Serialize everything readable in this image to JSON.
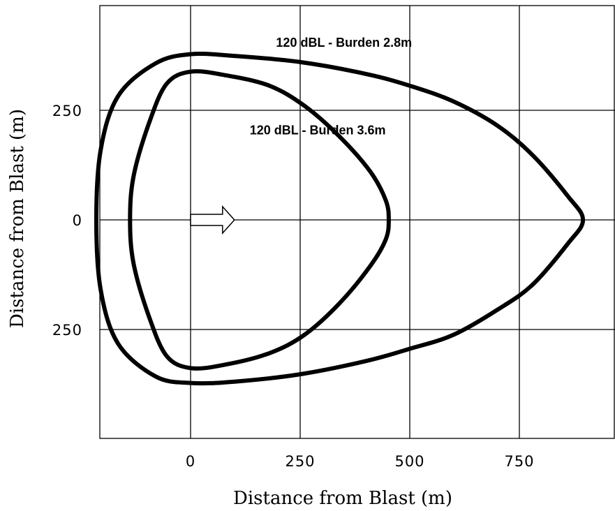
{
  "chart_data": {
    "type": "line",
    "xlabel": "Distance from Blast (m)",
    "ylabel": "Distance from Blast (m)",
    "xlim": [
      -210,
      980
    ],
    "ylim": [
      -500,
      500
    ],
    "x_ticks": [
      {
        "value": 0,
        "label": "0"
      },
      {
        "value": 250,
        "label": "250"
      },
      {
        "value": 500,
        "label": "500"
      },
      {
        "value": 750,
        "label": "750"
      }
    ],
    "y_ticks": [
      {
        "value": 250,
        "label": "250"
      },
      {
        "value": 0,
        "label": "0"
      },
      {
        "value": -250,
        "label": "250"
      }
    ],
    "grid": true,
    "series": [
      {
        "name": "120 dBL - Burden 2.8m",
        "closed": true,
        "points": [
          [
            0,
            378
          ],
          [
            100,
            374
          ],
          [
            250,
            360
          ],
          [
            400,
            333
          ],
          [
            500,
            306
          ],
          [
            600,
            270
          ],
          [
            700,
            215
          ],
          [
            780,
            148
          ],
          [
            860,
            55
          ],
          [
            895,
            0
          ],
          [
            860,
            -55
          ],
          [
            780,
            -148
          ],
          [
            700,
            -205
          ],
          [
            600,
            -262
          ],
          [
            500,
            -294
          ],
          [
            400,
            -322
          ],
          [
            250,
            -352
          ],
          [
            100,
            -369
          ],
          [
            0,
            -372
          ],
          [
            -80,
            -357
          ],
          [
            -165,
            -283
          ],
          [
            -205,
            -160
          ],
          [
            -215,
            0
          ],
          [
            -205,
            160
          ],
          [
            -165,
            283
          ],
          [
            -80,
            357
          ],
          [
            0,
            378
          ]
        ]
      },
      {
        "name": "120 dBL - Burden 3.6m",
        "closed": true,
        "points": [
          [
            0,
            338
          ],
          [
            80,
            330
          ],
          [
            180,
            306
          ],
          [
            260,
            260
          ],
          [
            340,
            190
          ],
          [
            410,
            110
          ],
          [
            445,
            45
          ],
          [
            452,
            0
          ],
          [
            445,
            -45
          ],
          [
            410,
            -105
          ],
          [
            340,
            -190
          ],
          [
            260,
            -262
          ],
          [
            180,
            -304
          ],
          [
            80,
            -330
          ],
          [
            0,
            -338
          ],
          [
            -55,
            -310
          ],
          [
            -95,
            -220
          ],
          [
            -130,
            -100
          ],
          [
            -138,
            0
          ],
          [
            -130,
            100
          ],
          [
            -95,
            220
          ],
          [
            -55,
            310
          ],
          [
            0,
            338
          ]
        ]
      }
    ],
    "annotations": [
      {
        "text": "120 dBL - Burden 2.8m",
        "x": 350,
        "y": 395
      },
      {
        "text": "120 dBL - Burden 3.6m",
        "x": 290,
        "y": 195
      }
    ],
    "arrow": {
      "from": [
        0,
        0
      ],
      "to": [
        100,
        0
      ],
      "direction": "right"
    }
  }
}
